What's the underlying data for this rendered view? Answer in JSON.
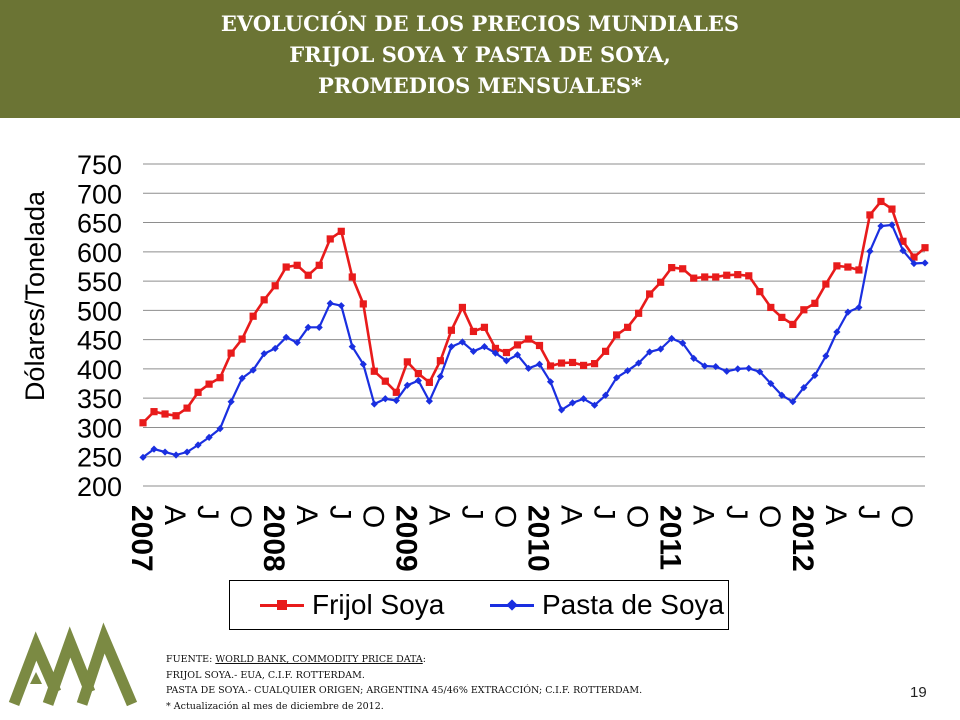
{
  "title": {
    "line1": "EVOLUCIÓN DE LOS PRECIOS MUNDIALES",
    "line2": "FRIJOL SOYA Y PASTA DE SOYA,",
    "line3": "PROMEDIOS MENSUALES*"
  },
  "colors": {
    "header_bg": "#6b7434",
    "series_frijol": "#e81b1b",
    "series_pasta": "#1a2fe0",
    "logo": "#7b8a43"
  },
  "chart_data": {
    "type": "line",
    "title": "",
    "xlabel": "",
    "ylabel": "Dólares/Tonelada",
    "ylim": [
      200,
      750
    ],
    "yticks": [
      200,
      250,
      300,
      350,
      400,
      450,
      500,
      550,
      600,
      650,
      700,
      750
    ],
    "grid": true,
    "legend_position": "bottom",
    "x_tick_labels": [
      {
        "month_index": 0,
        "label": "2007",
        "type": "year"
      },
      {
        "month_index": 3,
        "label": "A",
        "type": "month"
      },
      {
        "month_index": 6,
        "label": "J",
        "type": "month"
      },
      {
        "month_index": 9,
        "label": "O",
        "type": "month"
      },
      {
        "month_index": 12,
        "label": "2008",
        "type": "year"
      },
      {
        "month_index": 15,
        "label": "A",
        "type": "month"
      },
      {
        "month_index": 18,
        "label": "J",
        "type": "month"
      },
      {
        "month_index": 21,
        "label": "O",
        "type": "month"
      },
      {
        "month_index": 24,
        "label": "2009",
        "type": "year"
      },
      {
        "month_index": 27,
        "label": "A",
        "type": "month"
      },
      {
        "month_index": 30,
        "label": "J",
        "type": "month"
      },
      {
        "month_index": 33,
        "label": "O",
        "type": "month"
      },
      {
        "month_index": 36,
        "label": "2010",
        "type": "year"
      },
      {
        "month_index": 39,
        "label": "A",
        "type": "month"
      },
      {
        "month_index": 42,
        "label": "J",
        "type": "month"
      },
      {
        "month_index": 45,
        "label": "O",
        "type": "month"
      },
      {
        "month_index": 48,
        "label": "2011",
        "type": "year"
      },
      {
        "month_index": 51,
        "label": "A",
        "type": "month"
      },
      {
        "month_index": 54,
        "label": "J",
        "type": "month"
      },
      {
        "month_index": 57,
        "label": "O",
        "type": "month"
      },
      {
        "month_index": 60,
        "label": "2012",
        "type": "year"
      },
      {
        "month_index": 63,
        "label": "A",
        "type": "month"
      },
      {
        "month_index": 66,
        "label": "J",
        "type": "month"
      },
      {
        "month_index": 69,
        "label": "O",
        "type": "month"
      }
    ],
    "series": [
      {
        "name": "Frijol Soya",
        "marker": "square",
        "values": [
          308,
          327,
          323,
          320,
          333,
          360,
          374,
          385,
          427,
          451,
          490,
          518,
          542,
          574,
          577,
          560,
          577,
          622,
          635,
          557,
          511,
          396,
          379,
          360,
          412,
          392,
          377,
          414,
          466,
          505,
          464,
          471,
          435,
          428,
          441,
          451,
          440,
          405,
          410,
          411,
          406,
          409,
          430,
          458,
          471,
          495,
          528,
          548,
          573,
          571,
          555,
          557,
          557,
          560,
          561,
          559,
          532,
          505,
          488,
          476,
          501,
          512,
          545,
          576,
          574,
          569,
          663,
          686,
          673,
          618,
          591,
          607
        ]
      },
      {
        "name": "Pasta de Soya",
        "marker": "diamond",
        "values": [
          249,
          263,
          258,
          253,
          258,
          270,
          283,
          298,
          344,
          384,
          398,
          426,
          435,
          454,
          445,
          471,
          471,
          512,
          508,
          438,
          408,
          340,
          349,
          346,
          372,
          380,
          345,
          387,
          438,
          446,
          430,
          438,
          427,
          414,
          424,
          401,
          408,
          378,
          330,
          342,
          349,
          338,
          355,
          385,
          397,
          410,
          429,
          434,
          452,
          444,
          418,
          405,
          404,
          396,
          400,
          401,
          395,
          375,
          355,
          344,
          368,
          389,
          422,
          463,
          497,
          505,
          601,
          644,
          646,
          602,
          580,
          581
        ]
      }
    ]
  },
  "legend": {
    "frijol": "Frijol Soya",
    "pasta": "Pasta de Soya"
  },
  "source": {
    "line1_prefix": "FUENTE: ",
    "line1_link": "WORLD BANK, COMMODITY PRICE DATA",
    "line1_suffix": ":",
    "line2": "FRIJOL SOYA.- EUA, C.I.F. ROTTERDAM.",
    "line3": "PASTA DE SOYA.- CUALQUIER ORIGEN; ARGENTINA 45/46% EXTRACCIÓN; C.I.F. ROTTERDAM.",
    "line4": " * Actualización al mes de diciembre de 2012."
  },
  "page_number": "19"
}
